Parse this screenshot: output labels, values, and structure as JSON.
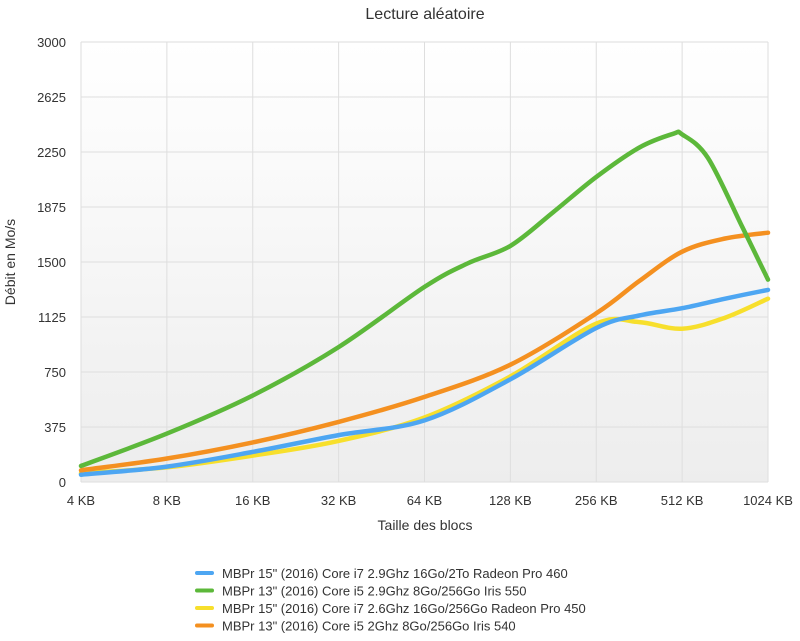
{
  "chart_data": {
    "type": "line",
    "title": "Lecture aléatoire",
    "xlabel": "Taille des blocs",
    "ylabel": "Débit en Mo/s",
    "categories": [
      "4 KB",
      "8 KB",
      "16 KB",
      "32 KB",
      "64 KB",
      "128 KB",
      "256 KB",
      "512 KB",
      "1024 KB"
    ],
    "ylim": [
      0,
      3000
    ],
    "yticks": [
      0,
      375,
      750,
      1125,
      1500,
      1875,
      2250,
      2625,
      3000
    ],
    "grid": true,
    "legend_position": "bottom",
    "series": [
      {
        "name": "MBPr 15\" (2016) Core i7 2.9Ghz 16Go/2To Radeon Pro 460",
        "color": "#4da6f2",
        "x": [
          0,
          1,
          2,
          3,
          4,
          5,
          6,
          6.5,
          7,
          7.5,
          8
        ],
        "values": [
          50,
          105,
          205,
          320,
          420,
          700,
          1050,
          1135,
          1185,
          1250,
          1310
        ]
      },
      {
        "name": "MBPr 13\" (2016) Core i5 2.9Ghz 8Go/256Go Iris 550",
        "color": "#5cb83a",
        "x": [
          0,
          1,
          2,
          3,
          4,
          4.5,
          5,
          5.5,
          6,
          6.5,
          6.9,
          7,
          7.3,
          7.7,
          8
        ],
        "values": [
          110,
          330,
          590,
          920,
          1330,
          1490,
          1610,
          1840,
          2080,
          2280,
          2375,
          2370,
          2210,
          1740,
          1380
        ]
      },
      {
        "name": "MBPr 15\" (2016) Core i7 2.6Ghz 16Go/256Go Radeon Pro 450",
        "color": "#f7df2c",
        "x": [
          0,
          1,
          2,
          3,
          4,
          5,
          6,
          6.5,
          7,
          7.5,
          8
        ],
        "values": [
          60,
          100,
          180,
          280,
          440,
          720,
          1080,
          1090,
          1045,
          1120,
          1250
        ]
      },
      {
        "name": "MBPr 13\" (2016) Core i5 2Ghz 8Go/256Go Iris 540",
        "color": "#f49020",
        "x": [
          0,
          1,
          2,
          3,
          4,
          5,
          6,
          6.5,
          7,
          7.5,
          8
        ],
        "values": [
          80,
          160,
          270,
          410,
          580,
          800,
          1150,
          1370,
          1570,
          1660,
          1700
        ]
      }
    ]
  }
}
